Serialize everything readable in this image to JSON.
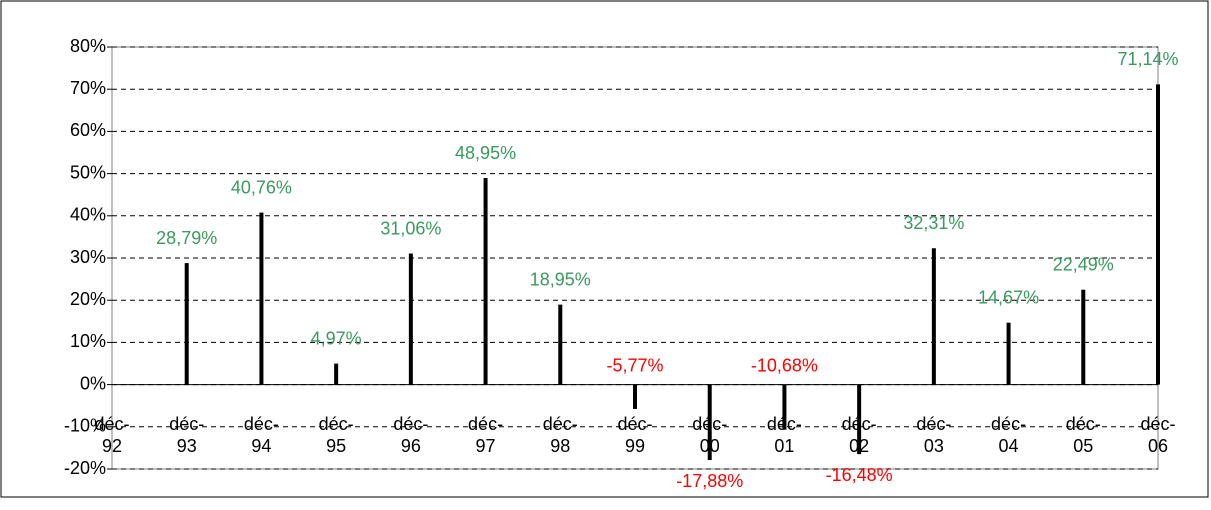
{
  "chart_data": {
    "type": "bar",
    "categories": [
      "déc-92",
      "déc-93",
      "déc-94",
      "déc-95",
      "déc-96",
      "déc-97",
      "déc-98",
      "déc-99",
      "déc-00",
      "déc-01",
      "déc-02",
      "déc-03",
      "déc-04",
      "déc-05",
      "déc-06"
    ],
    "values": [
      null,
      28.79,
      40.76,
      4.97,
      31.06,
      48.95,
      18.95,
      -5.77,
      -17.88,
      -10.68,
      -16.48,
      32.31,
      14.67,
      22.49,
      71.14
    ],
    "value_labels": [
      null,
      "28,79%",
      "40,76%",
      "4,97%",
      "31,06%",
      "48,95%",
      "18,95%",
      "-5,77%",
      "-17,88%",
      "-10,68%",
      "-16,48%",
      "32,31%",
      "14,67%",
      "22,49%",
      "71,14%"
    ],
    "color": "#000000",
    "positive_label_color": "#3a9a5e",
    "negative_label_color": "#ff0000",
    "ylim": [
      -20,
      80
    ],
    "yticks": [
      {
        "value": -20,
        "label": "-20%"
      },
      {
        "value": -10,
        "label": "-10%"
      },
      {
        "value": 0,
        "label": "0%"
      },
      {
        "value": 10,
        "label": "10%"
      },
      {
        "value": 20,
        "label": "20%"
      },
      {
        "value": 30,
        "label": "30%"
      },
      {
        "value": 40,
        "label": "40%"
      },
      {
        "value": 50,
        "label": "50%"
      },
      {
        "value": 60,
        "label": "60%"
      },
      {
        "value": 70,
        "label": "70%"
      },
      {
        "value": 80,
        "label": "80%"
      }
    ],
    "grid": true
  }
}
